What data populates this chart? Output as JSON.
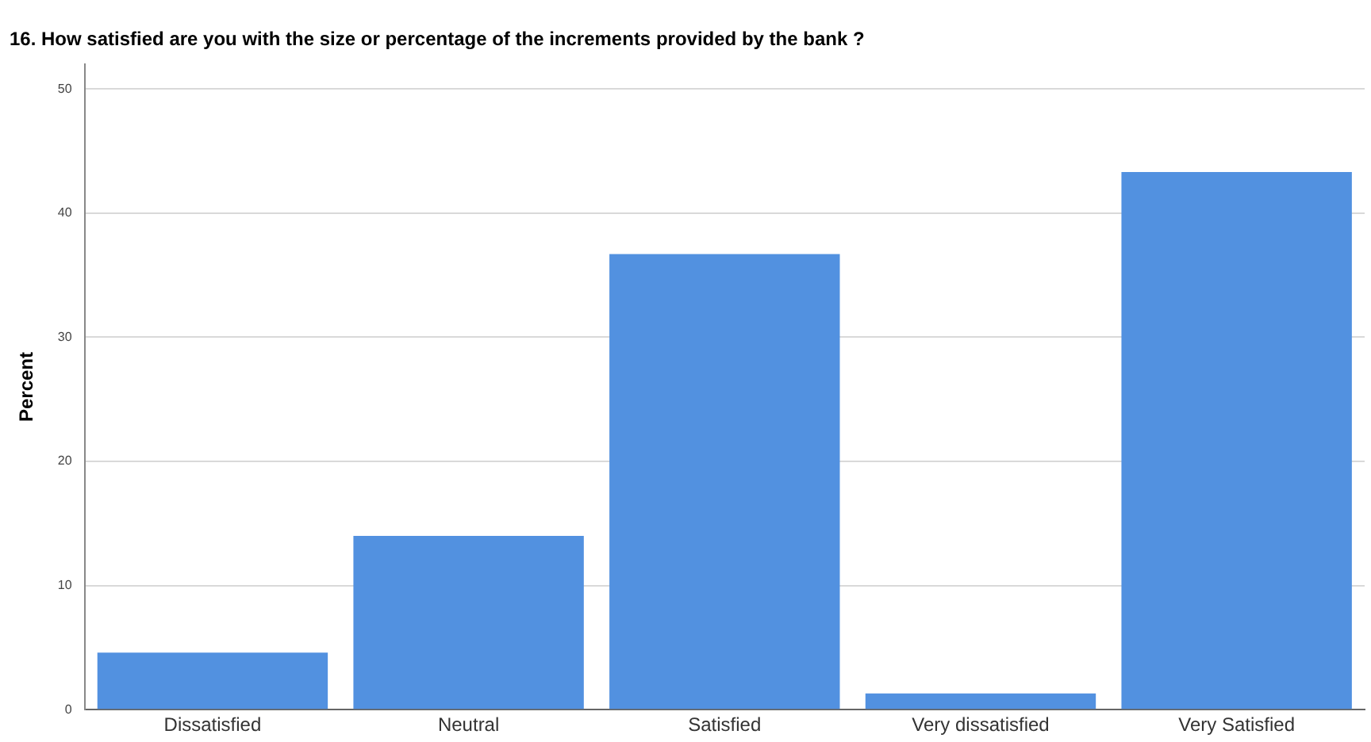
{
  "chart_data": {
    "type": "bar",
    "title": "16. How satisfied are you with the size or percentage of the increments provided by the bank ?",
    "ylabel": "Percent",
    "categories": [
      "Dissatisfied",
      "Neutral",
      "Satisfied",
      "Very dissatisfied",
      "Very Satisfied"
    ],
    "values": [
      4.6,
      14.0,
      36.7,
      1.3,
      43.3
    ],
    "color": "#5291e0",
    "ylim": [
      0,
      52
    ],
    "yticks": [
      0,
      10,
      20,
      30,
      40,
      50
    ],
    "grid": "y",
    "legend": false
  }
}
